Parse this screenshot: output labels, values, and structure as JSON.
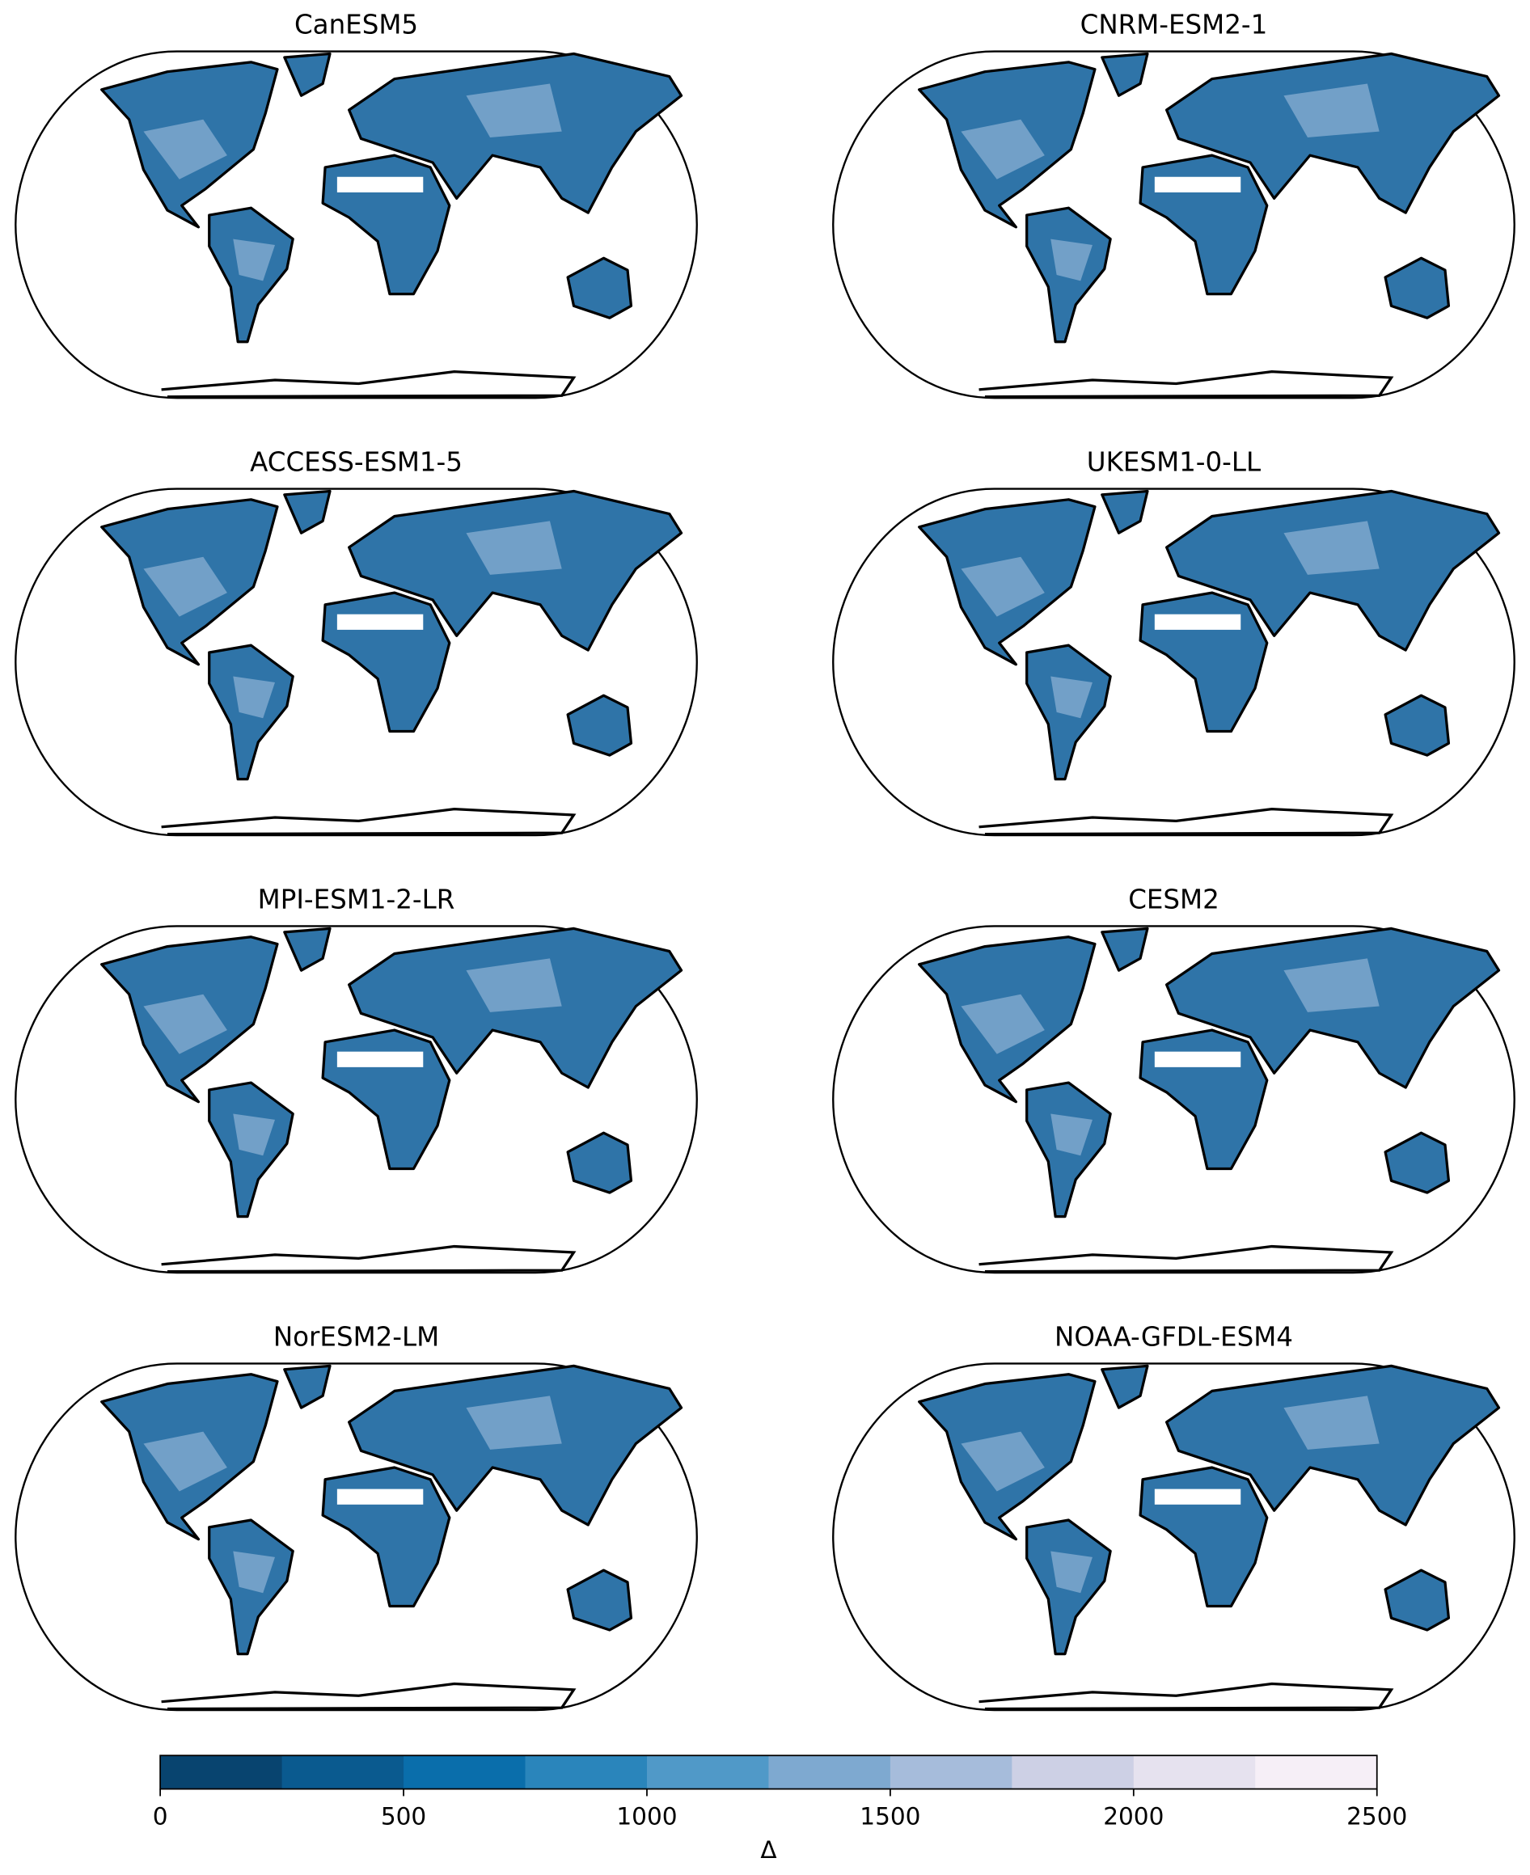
{
  "panels": [
    {
      "title": "CanESM5"
    },
    {
      "title": "CNRM-ESM2-1"
    },
    {
      "title": "ACCESS-ESM1-5"
    },
    {
      "title": "UKESM1-0-LL"
    },
    {
      "title": "MPI-ESM1-2-LR"
    },
    {
      "title": "CESM2"
    },
    {
      "title": "NorESM2-LM"
    },
    {
      "title": "NOAA-GFDL-ESM4"
    }
  ],
  "colorbar": {
    "levels": [
      0,
      250,
      500,
      750,
      1000,
      1250,
      1500,
      1750,
      2000,
      2250,
      2500
    ],
    "colors": [
      "#08446f",
      "#0a5a8f",
      "#0a6eab",
      "#2a85bb",
      "#5099c8",
      "#7ea9d0",
      "#a6bcdb",
      "#cdd0e5",
      "#e6e2ef",
      "#f6eff7"
    ],
    "ticks": [
      0,
      500,
      1000,
      1500,
      2000,
      2500
    ],
    "label": "Δ"
  }
}
